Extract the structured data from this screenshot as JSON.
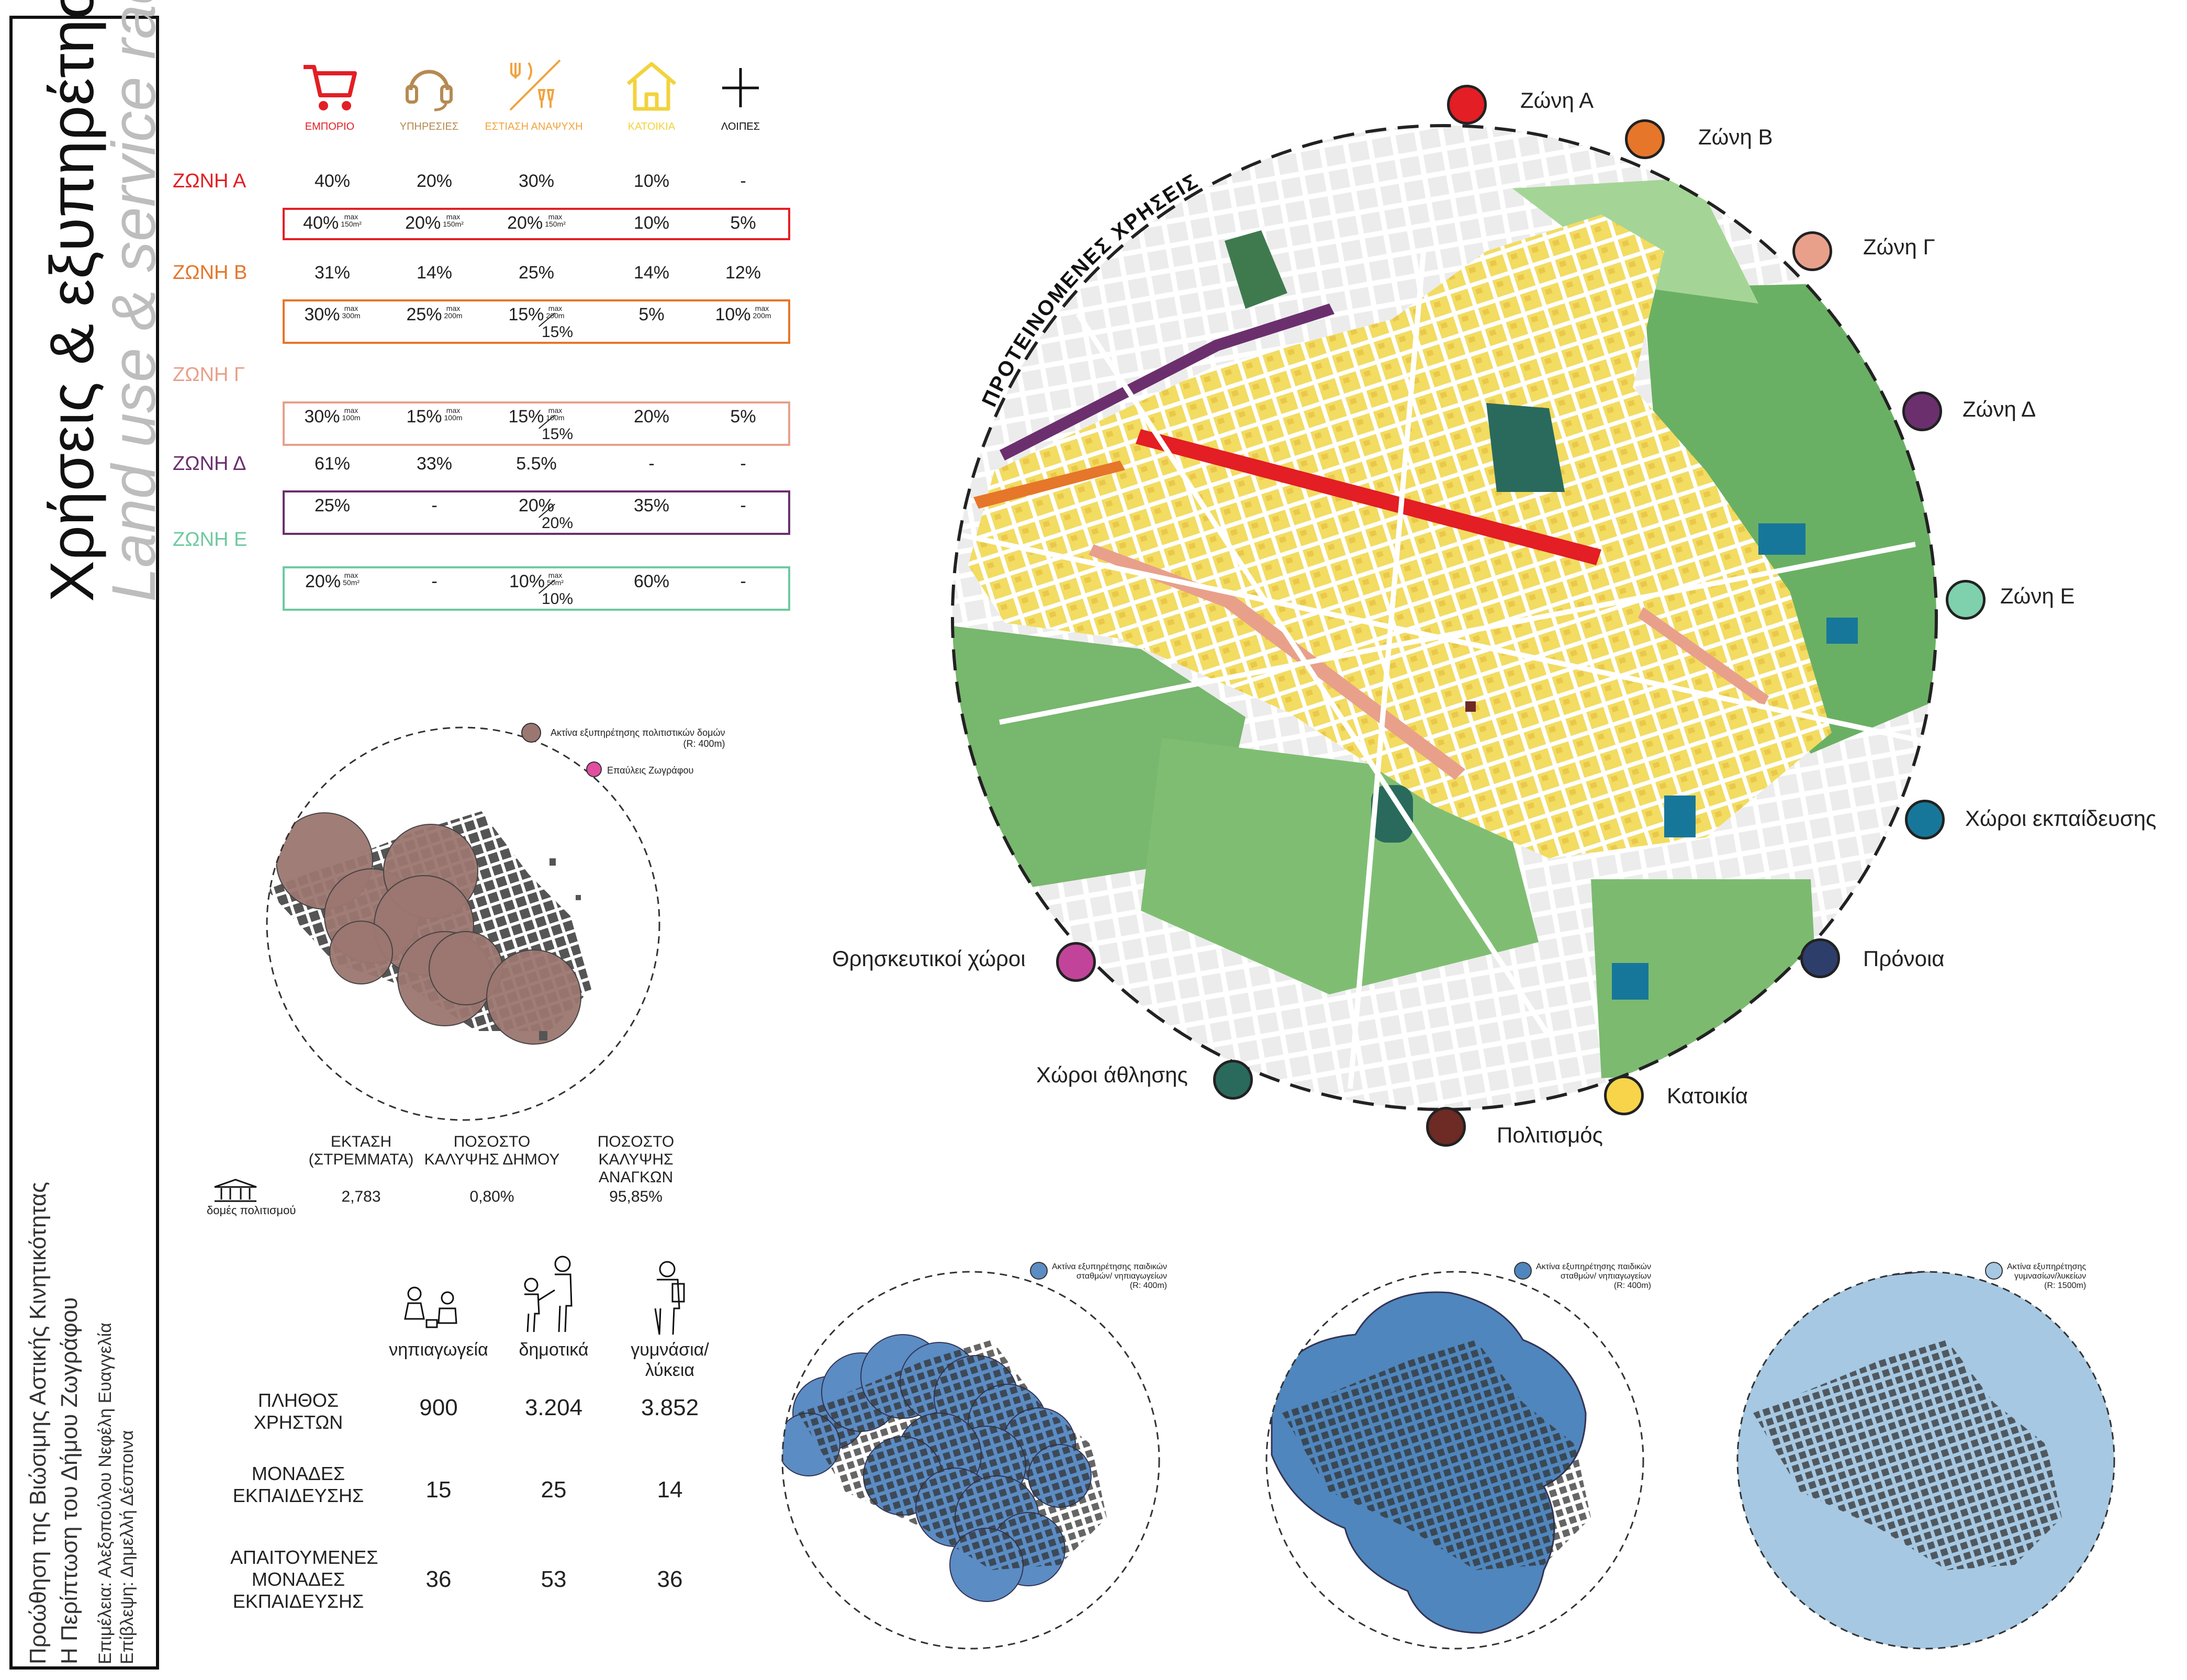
{
  "sidebar": {
    "title_gr": "Χρήσεις & εξυπηρέτηση",
    "title_en": "Land use & service radius",
    "project_line1": "Προώθηση της Βιώσιμης Αστικής Κινητικότητας",
    "project_line2": "Η Περίπτωση του Δήμου Ζωγράφου",
    "credit_line1": "Επιμέλεια: Αλεξοπούλου Νεφέλη Ευαγγελία",
    "credit_line2": "Επίβλεψη: Δημελλή Δέσποινα"
  },
  "categories": [
    {
      "label": "ΕΜΠΟΡΙΟ",
      "icon": "cart-icon",
      "color": "#e31e24"
    },
    {
      "label": "ΥΠΗΡΕΣΙΕΣ",
      "icon": "headset-icon",
      "color": "#b58a52"
    },
    {
      "label": "ΕΣΤΙΑΣΗ ΑΝΑΨΥΧΗ",
      "icon": "dining-icon",
      "color": "#f0a440"
    },
    {
      "label": "ΚΑΤΟΙΚΙΑ",
      "icon": "house-icon",
      "color": "#f2d33c"
    },
    {
      "label": "ΛΟΙΠΕΣ",
      "icon": "plus-icon",
      "color": "#111111"
    }
  ],
  "zones_table": [
    {
      "name": "ΖΩΝΗ Α",
      "color": "#e31e24",
      "current": [
        "40%",
        "20%",
        "30%",
        "10%",
        "-"
      ],
      "proposed": [
        {
          "v": "40%",
          "s1": "max",
          "s2": "150m²"
        },
        {
          "v": "20%",
          "s1": "max",
          "s2": "150m²"
        },
        {
          "v": "20%",
          "s1": "max",
          "s2": "150m²"
        },
        {
          "v": "10%"
        },
        {
          "v": "5%"
        }
      ]
    },
    {
      "name": "ΖΩΝΗ Β",
      "color": "#e6762a",
      "current": [
        "31%",
        "14%",
        "25%",
        "14%",
        "12%"
      ],
      "proposed": [
        {
          "v": "30%",
          "s1": "max",
          "s2": "300m"
        },
        {
          "v": "25%",
          "s1": "max",
          "s2": "200m"
        },
        {
          "v": "15%",
          "s1": "max",
          "s2": "200m",
          "b": "15%"
        },
        {
          "v": "5%"
        },
        {
          "v": "10%",
          "s1": "max",
          "s2": "200m"
        }
      ]
    },
    {
      "name": "ΖΩΝΗ Γ",
      "color": "#e8a08b",
      "current": [
        "",
        "",
        "",
        "",
        ""
      ],
      "proposed": [
        {
          "v": "30%",
          "s1": "max",
          "s2": "100m"
        },
        {
          "v": "15%",
          "s1": "max",
          "s2": "100m"
        },
        {
          "v": "15%",
          "s1": "max",
          "s2": "100m",
          "b": "15%"
        },
        {
          "v": "20%"
        },
        {
          "v": "5%"
        }
      ]
    },
    {
      "name": "ΖΩΝΗ Δ",
      "color": "#6b2f6e",
      "current": [
        "61%",
        "33%",
        "5.5%",
        "-",
        "-"
      ],
      "proposed": [
        {
          "v": "25%"
        },
        {
          "v": "-"
        },
        {
          "v": "20%",
          "b": "20%"
        },
        {
          "v": "35%"
        },
        {
          "v": "-"
        }
      ]
    },
    {
      "name": "ΖΩΝΗ Ε",
      "color": "#6fcaa0",
      "current": [
        "",
        "",
        "",
        "",
        ""
      ],
      "proposed": [
        {
          "v": "20%",
          "s1": "max",
          "s2": "50m²"
        },
        {
          "v": "-"
        },
        {
          "v": "10%",
          "s1": "max",
          "s2": "50m²",
          "b": "10%"
        },
        {
          "v": "60%"
        },
        {
          "v": "-"
        }
      ]
    }
  ],
  "main_map": {
    "title": "ΠΡΟΤΕΙΝΟΜΕΝΕΣ ΧΡΗΣΕΙΣ",
    "legend": [
      {
        "label": "Ζώνη Α",
        "color": "#e31e24"
      },
      {
        "label": "Ζώνη Β",
        "color": "#e6762a"
      },
      {
        "label": "Ζώνη Γ",
        "color": "#e8a08b"
      },
      {
        "label": "Ζώνη Δ",
        "color": "#6b2f6e"
      },
      {
        "label": "Ζώνη Ε",
        "color": "#7fd0ad"
      },
      {
        "label": "Χώροι εκπαίδευσης",
        "color": "#17779a"
      },
      {
        "label": "Πρόνοια",
        "color": "#2d3e6b"
      },
      {
        "label": "Κατοικία",
        "color": "#f7d44a"
      },
      {
        "label": "Πολιτισμός",
        "color": "#6e2a25"
      },
      {
        "label": "Χώροι άθλησης",
        "color": "#2a6a5c"
      },
      {
        "label": "Θρησκευτικοί χώροι",
        "color": "#c2449a"
      }
    ]
  },
  "culture_map": {
    "legend_radius": "Ακτίνα εξυπηρέτησης πολιτιστικών δομών",
    "legend_radius_r": "(R: 400m)",
    "legend_radius_color": "#9c7670",
    "legend_points": "Επαύλεις Ζωγράφου",
    "legend_points_color": "#e04ea0",
    "stats_headers": [
      "ΕΚΤΑΣΗ (ΣΤΡΕΜΜΑΤΑ)",
      "ΠΟΣΟΣΤΟ ΚΑΛΥΨΗΣ ΔΗΜΟΥ",
      "ΠΟΣΟΣΤΟ ΚΑΛΥΨΗΣ ΑΝΑΓΚΩΝ"
    ],
    "stats_values": [
      "2,783",
      "0,80%",
      "95,85%"
    ],
    "icon_label": "δομές πολιτισμού"
  },
  "education": {
    "headers": [
      "νηπιαγωγεία",
      "δημοτικά",
      "γυμνάσια/λύκεια"
    ],
    "rows": [
      {
        "label": "ΠΛΗΘΟΣ ΧΡΗΣΤΩΝ",
        "values": [
          "900",
          "3.204",
          "3.852"
        ]
      },
      {
        "label": "ΜΟΝΑΔΕΣ ΕΚΠΑΙΔΕΥΣΗΣ",
        "values": [
          "15",
          "25",
          "14"
        ]
      },
      {
        "label": "ΑΠΑΙΤΟΥΜΕΝΕΣ ΜΟΝΑΔΕΣ ΕΚΠΑΙΔΕΥΣΗΣ",
        "values": [
          "36",
          "53",
          "36"
        ]
      }
    ]
  },
  "radius_maps": [
    {
      "legend_l1": "Ακτίνα εξυπηρέτησης παιδικών",
      "legend_l2": "σταθμών/ νηπιαγωγείων",
      "legend_l3": "(R: 400m)",
      "color": "#5b8cc4"
    },
    {
      "legend_l1": "Ακτίνα εξυπηρέτησης παιδικών",
      "legend_l2": "σταθμών/ νηπιαγωγείων",
      "legend_l3": "(R: 400m)",
      "color": "#4f86bd"
    },
    {
      "legend_l1": "Ακτίνα εξυπηρέτησης",
      "legend_l2": "γυμνασίων/λυκείων",
      "legend_l3": "(R: 1500m)",
      "color": "#a6c8e2"
    }
  ]
}
